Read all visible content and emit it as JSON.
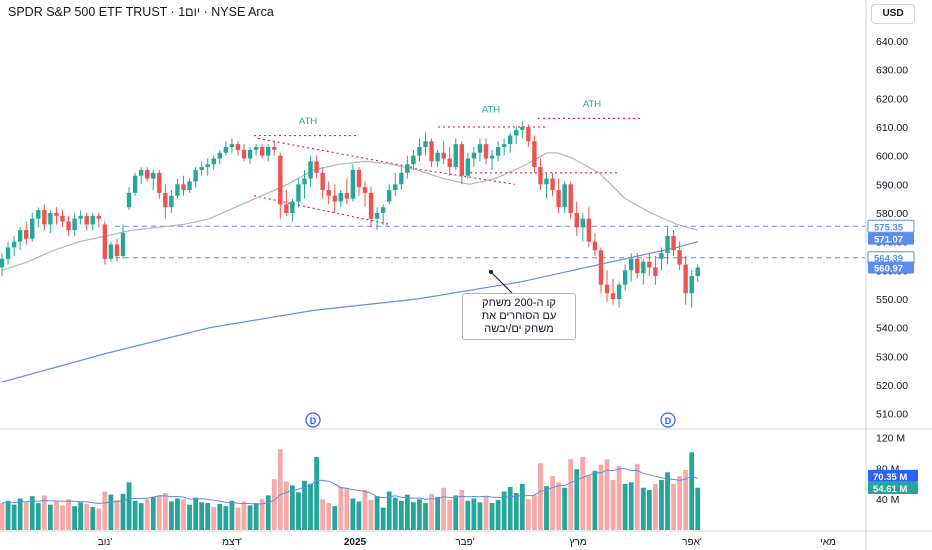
{
  "header": {
    "title": "SPDR S&P 500 ETF TRUST · 1יום · NYSE Arca",
    "currency": "USD"
  },
  "annotation": {
    "lines": [
      "קו ה-200 משחק",
      "עם הסוחרים את",
      "משחק ים/יבשה"
    ]
  },
  "colors": {
    "up": "#26a69a",
    "down": "#ef5350",
    "vol_up": "#26a69a",
    "vol_down": "#f7a9a7",
    "ma_short": "#b2b5be",
    "ma_long": "#5b8def",
    "trend": "#e91e63",
    "level": "#5b8def"
  },
  "chart_data": {
    "type": "candlestick",
    "price_axis": {
      "ticks": [
        510,
        520,
        530,
        540,
        550,
        560,
        570,
        580,
        590,
        600,
        610,
        620,
        630,
        640
      ],
      "labels": [
        "510.00",
        "520.00",
        "530.00",
        "540.00",
        "550.00",
        "560.00",
        "570.00",
        "580.00",
        "590.00",
        "600.00",
        "610.00",
        "620.00",
        "630.00",
        "640.00"
      ],
      "range": [
        505,
        648
      ]
    },
    "volume_axis": {
      "ticks": [
        40,
        80,
        120
      ],
      "labels": [
        "40 M",
        "80 M",
        "120 M"
      ],
      "range": [
        0,
        130
      ]
    },
    "x_labels": [
      "נוב'",
      "דצמ'",
      "2025",
      "פבר'",
      "מרץ",
      "אפר'",
      "מאי"
    ],
    "price_badges": [
      {
        "value": 575.35,
        "label": "575.35",
        "style": "outline"
      },
      {
        "value": 571.07,
        "label": "571.07",
        "style": "solid"
      },
      {
        "value": 564.39,
        "label": "564.39",
        "style": "outline"
      },
      {
        "value": 560.97,
        "label": "560.97",
        "style": "solid"
      }
    ],
    "volume_badges": [
      {
        "value": 70.35,
        "label": "70.35 M",
        "style": "blue"
      },
      {
        "value": 54.61,
        "label": "54.61 M",
        "style": "teal"
      }
    ],
    "ath_labels": [
      "ATH",
      "ATH",
      "ATH"
    ],
    "dividend_marker": "D",
    "candles": [
      [
        561,
        566,
        558,
        564
      ],
      [
        564,
        570,
        562,
        568
      ],
      [
        568,
        572,
        565,
        570
      ],
      [
        570,
        575,
        567,
        574
      ],
      [
        574,
        577,
        569,
        571
      ],
      [
        571,
        580,
        570,
        578
      ],
      [
        578,
        582,
        575,
        581
      ],
      [
        581,
        583,
        574,
        576
      ],
      [
        576,
        581,
        573,
        580
      ],
      [
        580,
        582,
        576,
        579
      ],
      [
        579,
        581,
        575,
        577
      ],
      [
        577,
        579,
        572,
        574
      ],
      [
        574,
        580,
        572,
        578
      ],
      [
        578,
        581,
        576,
        579
      ],
      [
        579,
        580,
        574,
        576
      ],
      [
        576,
        580,
        574,
        579
      ],
      [
        579,
        580,
        575,
        578
      ],
      [
        576,
        577,
        562,
        564
      ],
      [
        564,
        570,
        563,
        569
      ],
      [
        569,
        571,
        563,
        565
      ],
      [
        565,
        576,
        564,
        573
      ],
      [
        582,
        589,
        581,
        587
      ],
      [
        587,
        594,
        586,
        593
      ],
      [
        593,
        596,
        590,
        595
      ],
      [
        595,
        596,
        591,
        592
      ],
      [
        592,
        595,
        588,
        594
      ],
      [
        594,
        595,
        585,
        587
      ],
      [
        587,
        590,
        578,
        582
      ],
      [
        582,
        588,
        580,
        586
      ],
      [
        586,
        592,
        585,
        590
      ],
      [
        590,
        593,
        586,
        588
      ],
      [
        588,
        592,
        587,
        591
      ],
      [
        591,
        596,
        589,
        595
      ],
      [
        595,
        598,
        593,
        596
      ],
      [
        596,
        599,
        593,
        597
      ],
      [
        597,
        600,
        595,
        599
      ],
      [
        599,
        602,
        597,
        601
      ],
      [
        601,
        605,
        600,
        603
      ],
      [
        603,
        606,
        601,
        604
      ],
      [
        604,
        605,
        600,
        602
      ],
      [
        602,
        604,
        598,
        599
      ],
      [
        599,
        603,
        597,
        602
      ],
      [
        602,
        604,
        600,
        603
      ],
      [
        603,
        604,
        599,
        600
      ],
      [
        600,
        604,
        598,
        603
      ],
      [
        603,
        605,
        600,
        602
      ],
      [
        600,
        601,
        578,
        583
      ],
      [
        583,
        588,
        579,
        580
      ],
      [
        580,
        585,
        577,
        584
      ],
      [
        584,
        592,
        582,
        590
      ],
      [
        590,
        595,
        585,
        592
      ],
      [
        592,
        600,
        589,
        598
      ],
      [
        598,
        600,
        592,
        594
      ],
      [
        594,
        596,
        585,
        588
      ],
      [
        588,
        591,
        583,
        586
      ],
      [
        586,
        590,
        580,
        584
      ],
      [
        584,
        588,
        582,
        587
      ],
      [
        587,
        592,
        583,
        585
      ],
      [
        585,
        597,
        584,
        595
      ],
      [
        595,
        596,
        586,
        589
      ],
      [
        589,
        591,
        582,
        587
      ],
      [
        587,
        589,
        575,
        578
      ],
      [
        578,
        582,
        574,
        580
      ],
      [
        580,
        583,
        576,
        582
      ],
      [
        584,
        590,
        583,
        588
      ],
      [
        588,
        594,
        586,
        590
      ],
      [
        590,
        596,
        588,
        594
      ],
      [
        594,
        600,
        592,
        597
      ],
      [
        597,
        602,
        595,
        600
      ],
      [
        600,
        606,
        598,
        603
      ],
      [
        603,
        608,
        600,
        605
      ],
      [
        605,
        606,
        596,
        598
      ],
      [
        598,
        602,
        596,
        601
      ],
      [
        601,
        605,
        597,
        599
      ],
      [
        599,
        603,
        593,
        596
      ],
      [
        596,
        606,
        595,
        604
      ],
      [
        604,
        605,
        590,
        593
      ],
      [
        593,
        601,
        592,
        599
      ],
      [
        599,
        603,
        596,
        601
      ],
      [
        601,
        606,
        598,
        604
      ],
      [
        604,
        606,
        597,
        599
      ],
      [
        599,
        602,
        595,
        600
      ],
      [
        600,
        605,
        598,
        603
      ],
      [
        603,
        606,
        600,
        604
      ],
      [
        604,
        608,
        601,
        607
      ],
      [
        607,
        610,
        604,
        609
      ],
      [
        609,
        612,
        606,
        610
      ],
      [
        610,
        611,
        603,
        605
      ],
      [
        605,
        607,
        594,
        596
      ],
      [
        596,
        599,
        588,
        590
      ],
      [
        590,
        594,
        585,
        592
      ],
      [
        592,
        594,
        586,
        588
      ],
      [
        588,
        592,
        580,
        582
      ],
      [
        582,
        591,
        580,
        590
      ],
      [
        590,
        591,
        578,
        580
      ],
      [
        580,
        584,
        572,
        575
      ],
      [
        575,
        580,
        570,
        578
      ],
      [
        578,
        582,
        568,
        570
      ],
      [
        570,
        573,
        565,
        567
      ],
      [
        567,
        568,
        552,
        555
      ],
      [
        555,
        560,
        549,
        552
      ],
      [
        552,
        557,
        548,
        550
      ],
      [
        550,
        556,
        547,
        555
      ],
      [
        555,
        562,
        553,
        560
      ],
      [
        560,
        566,
        556,
        564
      ],
      [
        564,
        566,
        557,
        559
      ],
      [
        559,
        564,
        555,
        563
      ],
      [
        563,
        566,
        558,
        561
      ],
      [
        561,
        565,
        555,
        558
      ],
      [
        564,
        568,
        560,
        566
      ],
      [
        566,
        575,
        562,
        572
      ],
      [
        572,
        574,
        565,
        567
      ],
      [
        567,
        570,
        560,
        562
      ],
      [
        562,
        565,
        548,
        552
      ],
      [
        552,
        560,
        547,
        558
      ],
      [
        558,
        562,
        556,
        561
      ]
    ],
    "volumes": [
      [
        35,
        0
      ],
      [
        38,
        1
      ],
      [
        33,
        1
      ],
      [
        41,
        1
      ],
      [
        36,
        0
      ],
      [
        44,
        1
      ],
      [
        35,
        1
      ],
      [
        45,
        0
      ],
      [
        33,
        1
      ],
      [
        37,
        0
      ],
      [
        32,
        0
      ],
      [
        40,
        0
      ],
      [
        31,
        1
      ],
      [
        36,
        1
      ],
      [
        34,
        0
      ],
      [
        30,
        1
      ],
      [
        28,
        0
      ],
      [
        50,
        0
      ],
      [
        46,
        1
      ],
      [
        39,
        0
      ],
      [
        47,
        1
      ],
      [
        62,
        1
      ],
      [
        38,
        1
      ],
      [
        35,
        1
      ],
      [
        40,
        0
      ],
      [
        43,
        1
      ],
      [
        45,
        0
      ],
      [
        48,
        0
      ],
      [
        37,
        1
      ],
      [
        41,
        1
      ],
      [
        40,
        0
      ],
      [
        33,
        1
      ],
      [
        42,
        1
      ],
      [
        36,
        1
      ],
      [
        35,
        1
      ],
      [
        30,
        0
      ],
      [
        34,
        1
      ],
      [
        31,
        1
      ],
      [
        38,
        1
      ],
      [
        29,
        0
      ],
      [
        37,
        0
      ],
      [
        32,
        1
      ],
      [
        35,
        1
      ],
      [
        40,
        0
      ],
      [
        45,
        1
      ],
      [
        66,
        0
      ],
      [
        105,
        0
      ],
      [
        63,
        0
      ],
      [
        58,
        1
      ],
      [
        49,
        1
      ],
      [
        64,
        1
      ],
      [
        60,
        1
      ],
      [
        95,
        1
      ],
      [
        40,
        0
      ],
      [
        35,
        0
      ],
      [
        31,
        1
      ],
      [
        56,
        0
      ],
      [
        54,
        0
      ],
      [
        41,
        1
      ],
      [
        37,
        1
      ],
      [
        52,
        0
      ],
      [
        39,
        0
      ],
      [
        44,
        1
      ],
      [
        29,
        1
      ],
      [
        50,
        1
      ],
      [
        42,
        1
      ],
      [
        38,
        1
      ],
      [
        46,
        1
      ],
      [
        36,
        1
      ],
      [
        40,
        1
      ],
      [
        35,
        1
      ],
      [
        47,
        0
      ],
      [
        43,
        1
      ],
      [
        55,
        0
      ],
      [
        39,
        0
      ],
      [
        45,
        1
      ],
      [
        52,
        0
      ],
      [
        38,
        1
      ],
      [
        41,
        1
      ],
      [
        36,
        1
      ],
      [
        44,
        0
      ],
      [
        35,
        1
      ],
      [
        39,
        1
      ],
      [
        50,
        1
      ],
      [
        56,
        1
      ],
      [
        48,
        1
      ],
      [
        60,
        1
      ],
      [
        40,
        0
      ],
      [
        45,
        0
      ],
      [
        87,
        0
      ],
      [
        57,
        1
      ],
      [
        70,
        0
      ],
      [
        62,
        0
      ],
      [
        55,
        1
      ],
      [
        92,
        0
      ],
      [
        79,
        1
      ],
      [
        95,
        0
      ],
      [
        71,
        0
      ],
      [
        77,
        1
      ],
      [
        85,
        0
      ],
      [
        92,
        0
      ],
      [
        65,
        0
      ],
      [
        83,
        0
      ],
      [
        60,
        1
      ],
      [
        62,
        1
      ],
      [
        86,
        0
      ],
      [
        55,
        1
      ],
      [
        52,
        1
      ],
      [
        60,
        0
      ],
      [
        65,
        1
      ],
      [
        75,
        1
      ],
      [
        60,
        0
      ],
      [
        70,
        0
      ],
      [
        78,
        0
      ],
      [
        101,
        1
      ],
      [
        55,
        1
      ]
    ],
    "ma_short_points": [
      [
        0,
        560
      ],
      [
        10,
        563
      ],
      [
        20,
        567
      ],
      [
        30,
        570
      ],
      [
        40,
        572
      ],
      [
        50,
        574
      ],
      [
        60,
        575
      ],
      [
        70,
        576
      ],
      [
        80,
        578
      ],
      [
        90,
        582
      ],
      [
        100,
        586
      ],
      [
        110,
        590
      ],
      [
        120,
        595
      ],
      [
        130,
        597
      ],
      [
        140,
        598
      ],
      [
        150,
        597
      ],
      [
        160,
        595
      ],
      [
        170,
        592
      ],
      [
        180,
        590
      ],
      [
        190,
        592
      ],
      [
        200,
        596
      ],
      [
        210,
        601
      ],
      [
        214,
        601
      ],
      [
        220,
        599
      ],
      [
        230,
        594
      ],
      [
        240,
        585
      ],
      [
        250,
        580
      ],
      [
        260,
        576
      ],
      [
        268,
        574
      ]
    ],
    "ma_long_points": [
      [
        0,
        521
      ],
      [
        40,
        531
      ],
      [
        80,
        540
      ],
      [
        120,
        546
      ],
      [
        160,
        550
      ],
      [
        200,
        556
      ],
      [
        230,
        562
      ],
      [
        260,
        568
      ],
      [
        268,
        570
      ]
    ],
    "levels": [
      575.35,
      564.39
    ],
    "x_label_positions": [
      105,
      232,
      355,
      465,
      578,
      692,
      828
    ]
  }
}
